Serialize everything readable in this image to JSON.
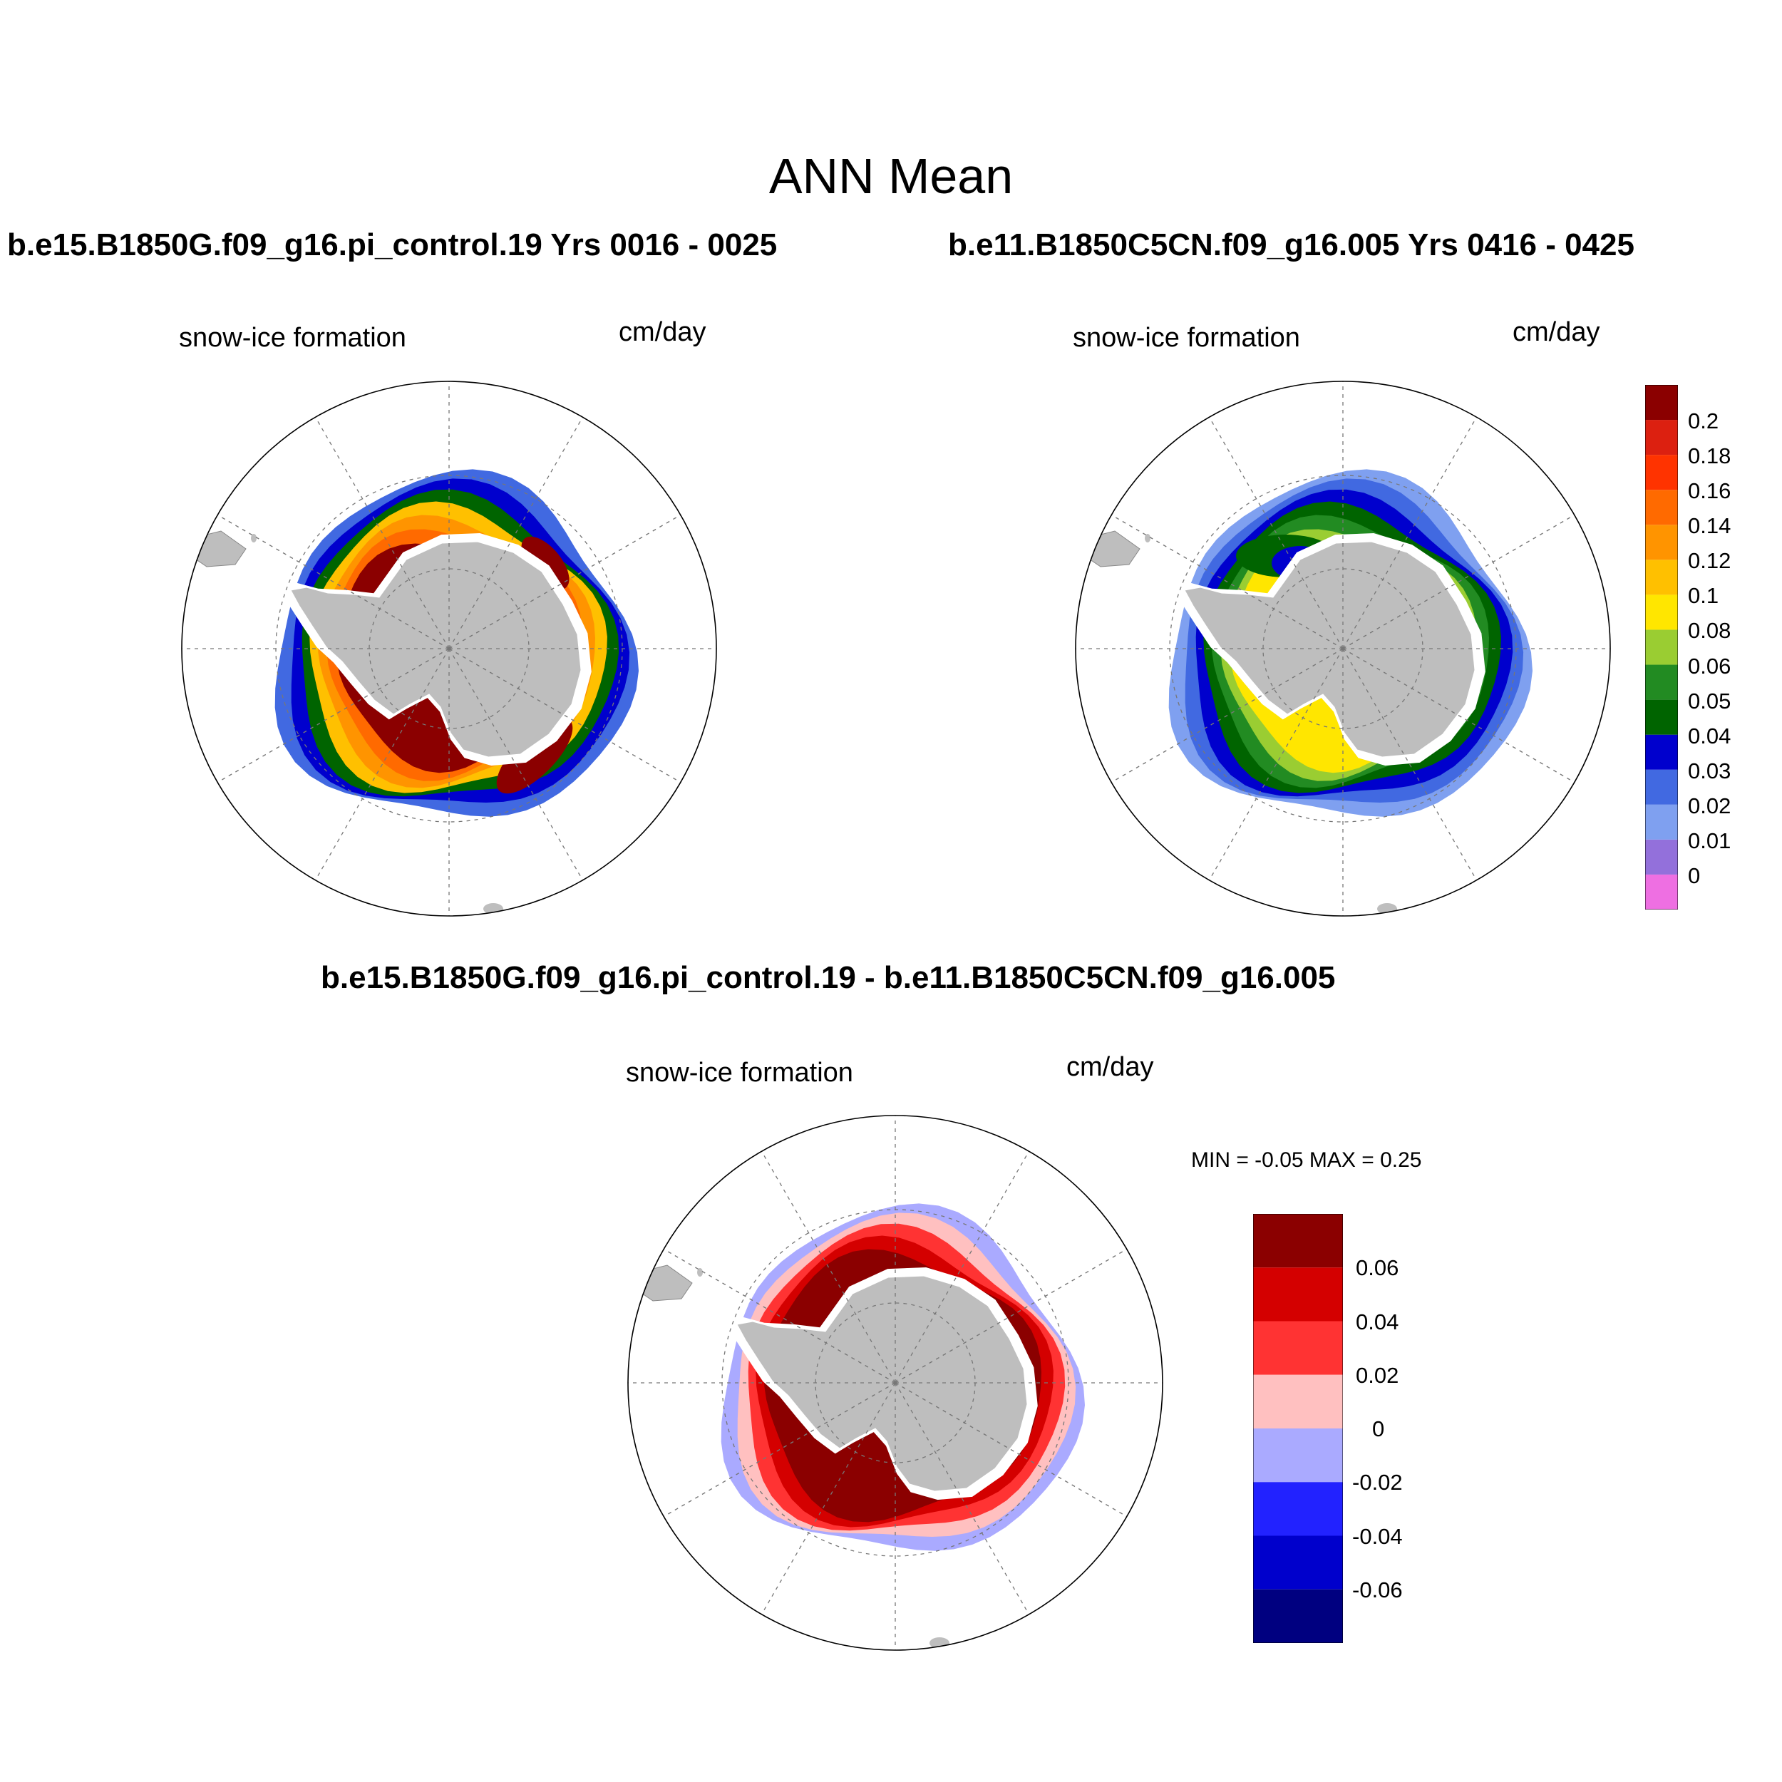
{
  "page_title": "ANN Mean",
  "panels": [
    {
      "id": "case1",
      "title": "b.e15.B1850G.f09_g16.pi_control.19  Yrs 0016 - 0025",
      "left_label": "snow-ice formation",
      "right_label": "cm/day"
    },
    {
      "id": "case2",
      "title": "b.e11.B1850C5CN.f09_g16.005  Yrs 0416 - 0425",
      "left_label": "snow-ice formation",
      "right_label": "cm/day"
    },
    {
      "id": "diff",
      "title": "b.e15.B1850G.f09_g16.pi_control.19 - b.e11.B1850C5CN.f09_g16.005",
      "left_label": "snow-ice formation",
      "right_label": "cm/day",
      "stats": "MIN =  -0.05 MAX =   0.25"
    }
  ],
  "colorbar_main": {
    "colors": [
      "#ee6fe2",
      "#9370db",
      "#7fa0f0",
      "#4169e1",
      "#0000cd",
      "#006400",
      "#228b22",
      "#9acd32",
      "#ffe600",
      "#ffc000",
      "#ff9400",
      "#ff6a00",
      "#ff3300",
      "#dc2010",
      "#8b0000"
    ],
    "labels": [
      "0",
      "0.01",
      "0.02",
      "0.03",
      "0.04",
      "0.05",
      "0.06",
      "0.08",
      "0.1",
      "0.12",
      "0.14",
      "0.16",
      "0.18",
      "0.2"
    ]
  },
  "colorbar_diff": {
    "colors": [
      "#8b0000",
      "#d40000",
      "#ff3333",
      "#ffc0c0",
      "#aaaaff",
      "#2222ff",
      "#0000cc",
      "#000080"
    ],
    "labels": [
      "0.06",
      "0.04",
      "0.02",
      "0",
      "-0.02",
      "-0.04",
      "-0.06"
    ]
  },
  "map_colors": {
    "land": "#bebebe",
    "ice_free": "#ffffff",
    "case1_ring": [
      "#4169e1",
      "#0000cd",
      "#006400",
      "#ffc000",
      "#ff9400",
      "#ff6a00",
      "#8b0000"
    ],
    "case2_ring": [
      "#7fa0f0",
      "#4169e1",
      "#0000cd",
      "#006400",
      "#228b22",
      "#9acd32",
      "#ffe600"
    ],
    "diff_ring": [
      "#aaaaff",
      "#ffc0c0",
      "#ff3333",
      "#d40000",
      "#8b0000"
    ]
  }
}
